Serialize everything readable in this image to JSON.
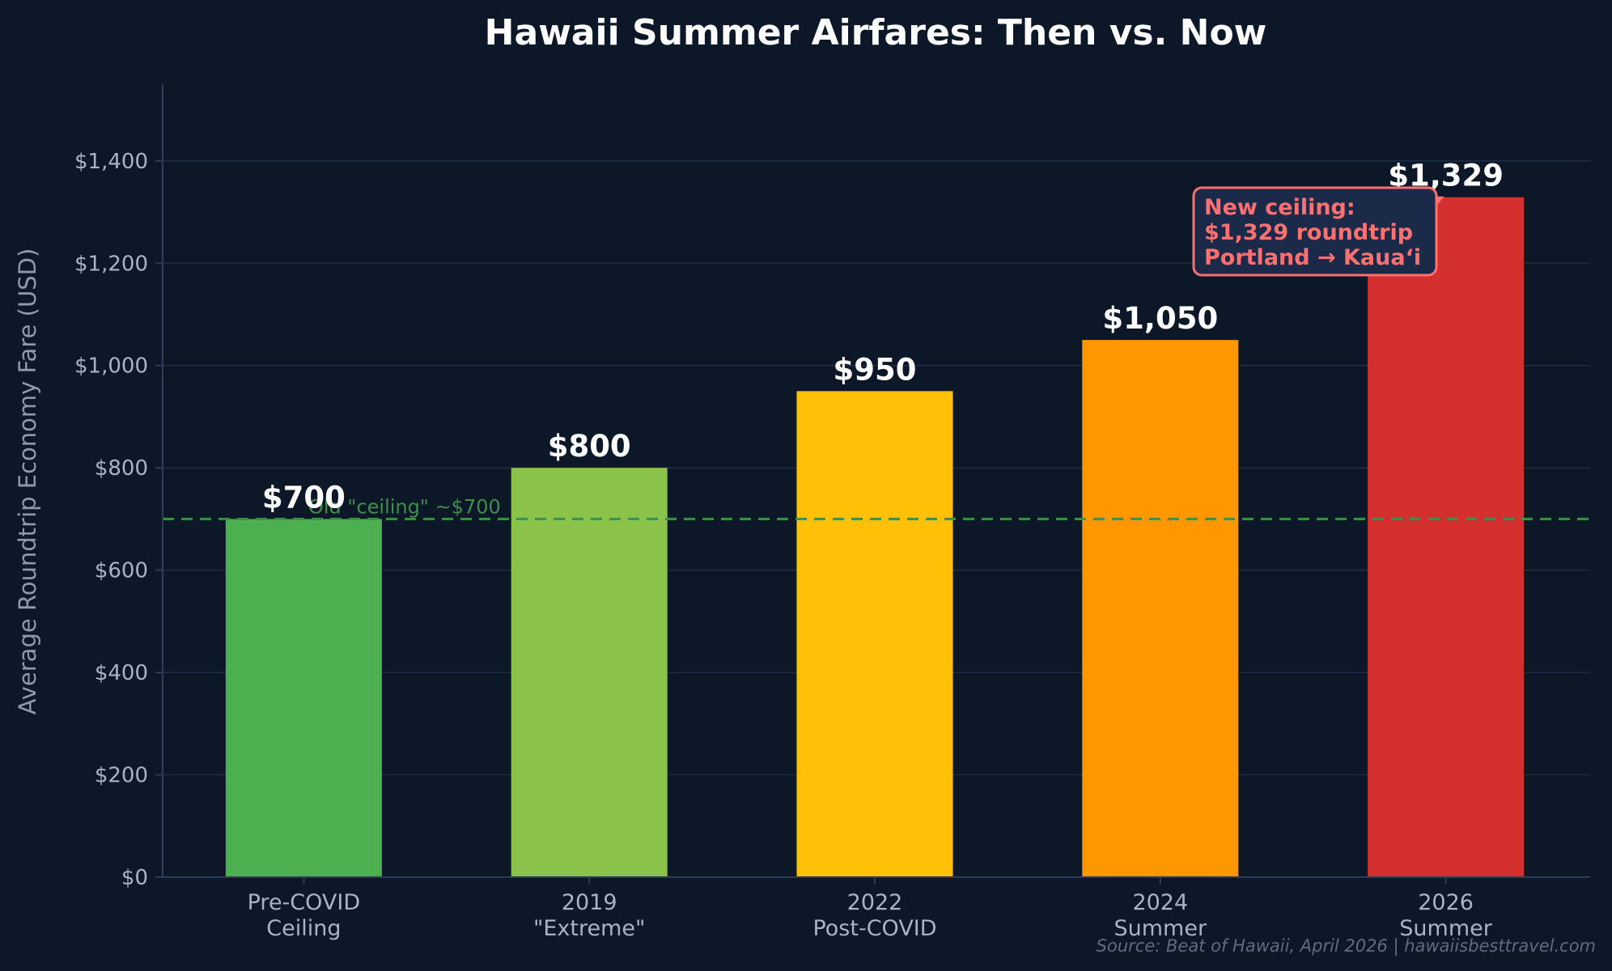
{
  "chart_data": {
    "type": "bar",
    "title": "Hawaii Summer Airfares: Then vs. Now",
    "ylabel": "Average Roundtrip Economy Fare (USD)",
    "xlabel": "",
    "categories": [
      [
        "Pre-COVID",
        "Ceiling"
      ],
      [
        "2019",
        "\"Extreme\""
      ],
      [
        "2022",
        "Post-COVID"
      ],
      [
        "2024",
        "Summer"
      ],
      [
        "2026",
        "Summer"
      ]
    ],
    "values": [
      700,
      800,
      950,
      1050,
      1329
    ],
    "value_labels": [
      "$700",
      "$800",
      "$950",
      "$1,050",
      "$1,329"
    ],
    "colors": [
      "#4caf50",
      "#8bc34a",
      "#ffc107",
      "#ff9800",
      "#d32f2f"
    ],
    "ylim": [
      0,
      1550
    ],
    "yticks": [
      0,
      200,
      400,
      600,
      800,
      1000,
      1200,
      1400
    ],
    "ytick_labels": [
      "$0",
      "$200",
      "$400",
      "$600",
      "$800",
      "$1,000",
      "$1,200",
      "$1,400"
    ],
    "grid": true,
    "reference_line": {
      "value": 700,
      "label": "Old \"ceiling\" ~$700",
      "color": "#3f8f4a",
      "style": "dashed"
    },
    "annotation": {
      "lines": [
        "New ceiling:",
        "$1,329 roundtrip",
        "Portland → Kaua‘i"
      ],
      "target_category_index": 4,
      "color": "#ff7070"
    },
    "source": "Source: Beat of Hawaii, April 2026 | hawaiisbesttravel.com"
  },
  "colors": {
    "background": "#0c1727",
    "grid": "#1f2d45",
    "axis": "#2e3c55",
    "annotation_box": "#1c2a4a"
  }
}
